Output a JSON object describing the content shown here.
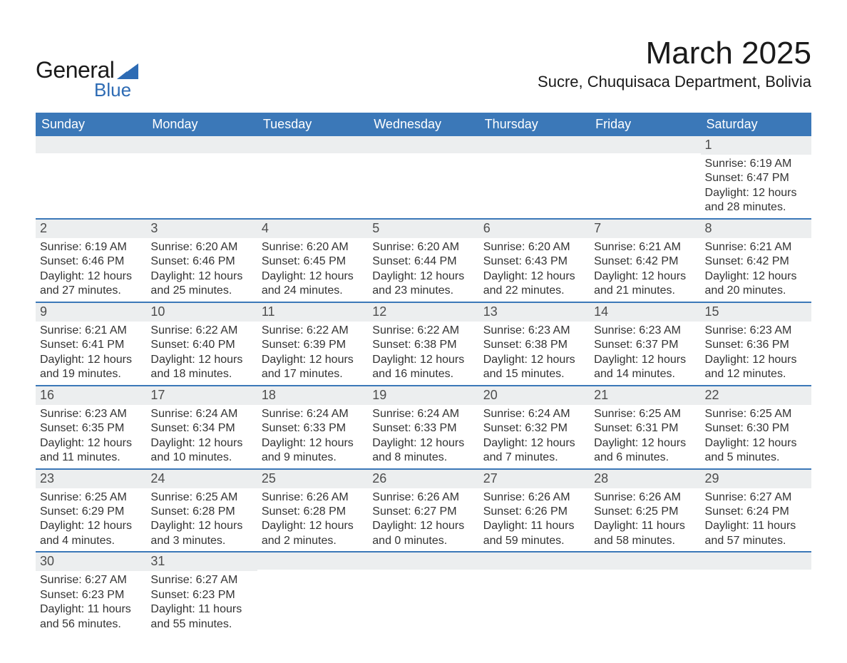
{
  "brand": {
    "line1": "General",
    "line2": "Blue"
  },
  "title": "March 2025",
  "location": "Sucre, Chuquisaca Department, Bolivia",
  "columns": [
    "Sunday",
    "Monday",
    "Tuesday",
    "Wednesday",
    "Thursday",
    "Friday",
    "Saturday"
  ],
  "colors": {
    "header_bg": "#3b78b8",
    "header_text": "#ffffff",
    "daynum_bg": "#eceeef",
    "row_border": "#3b78b8",
    "text": "#333333",
    "brand_blue": "#2d6bb4"
  },
  "first_weekday_index": 6,
  "days": [
    {
      "n": 1,
      "sunrise": "6:19 AM",
      "sunset": "6:47 PM",
      "dl_h": 12,
      "dl_m": 28
    },
    {
      "n": 2,
      "sunrise": "6:19 AM",
      "sunset": "6:46 PM",
      "dl_h": 12,
      "dl_m": 27
    },
    {
      "n": 3,
      "sunrise": "6:20 AM",
      "sunset": "6:46 PM",
      "dl_h": 12,
      "dl_m": 25
    },
    {
      "n": 4,
      "sunrise": "6:20 AM",
      "sunset": "6:45 PM",
      "dl_h": 12,
      "dl_m": 24
    },
    {
      "n": 5,
      "sunrise": "6:20 AM",
      "sunset": "6:44 PM",
      "dl_h": 12,
      "dl_m": 23
    },
    {
      "n": 6,
      "sunrise": "6:20 AM",
      "sunset": "6:43 PM",
      "dl_h": 12,
      "dl_m": 22
    },
    {
      "n": 7,
      "sunrise": "6:21 AM",
      "sunset": "6:42 PM",
      "dl_h": 12,
      "dl_m": 21
    },
    {
      "n": 8,
      "sunrise": "6:21 AM",
      "sunset": "6:42 PM",
      "dl_h": 12,
      "dl_m": 20
    },
    {
      "n": 9,
      "sunrise": "6:21 AM",
      "sunset": "6:41 PM",
      "dl_h": 12,
      "dl_m": 19
    },
    {
      "n": 10,
      "sunrise": "6:22 AM",
      "sunset": "6:40 PM",
      "dl_h": 12,
      "dl_m": 18
    },
    {
      "n": 11,
      "sunrise": "6:22 AM",
      "sunset": "6:39 PM",
      "dl_h": 12,
      "dl_m": 17
    },
    {
      "n": 12,
      "sunrise": "6:22 AM",
      "sunset": "6:38 PM",
      "dl_h": 12,
      "dl_m": 16
    },
    {
      "n": 13,
      "sunrise": "6:23 AM",
      "sunset": "6:38 PM",
      "dl_h": 12,
      "dl_m": 15
    },
    {
      "n": 14,
      "sunrise": "6:23 AM",
      "sunset": "6:37 PM",
      "dl_h": 12,
      "dl_m": 14
    },
    {
      "n": 15,
      "sunrise": "6:23 AM",
      "sunset": "6:36 PM",
      "dl_h": 12,
      "dl_m": 12
    },
    {
      "n": 16,
      "sunrise": "6:23 AM",
      "sunset": "6:35 PM",
      "dl_h": 12,
      "dl_m": 11
    },
    {
      "n": 17,
      "sunrise": "6:24 AM",
      "sunset": "6:34 PM",
      "dl_h": 12,
      "dl_m": 10
    },
    {
      "n": 18,
      "sunrise": "6:24 AM",
      "sunset": "6:33 PM",
      "dl_h": 12,
      "dl_m": 9
    },
    {
      "n": 19,
      "sunrise": "6:24 AM",
      "sunset": "6:33 PM",
      "dl_h": 12,
      "dl_m": 8
    },
    {
      "n": 20,
      "sunrise": "6:24 AM",
      "sunset": "6:32 PM",
      "dl_h": 12,
      "dl_m": 7
    },
    {
      "n": 21,
      "sunrise": "6:25 AM",
      "sunset": "6:31 PM",
      "dl_h": 12,
      "dl_m": 6
    },
    {
      "n": 22,
      "sunrise": "6:25 AM",
      "sunset": "6:30 PM",
      "dl_h": 12,
      "dl_m": 5
    },
    {
      "n": 23,
      "sunrise": "6:25 AM",
      "sunset": "6:29 PM",
      "dl_h": 12,
      "dl_m": 4
    },
    {
      "n": 24,
      "sunrise": "6:25 AM",
      "sunset": "6:28 PM",
      "dl_h": 12,
      "dl_m": 3
    },
    {
      "n": 25,
      "sunrise": "6:26 AM",
      "sunset": "6:28 PM",
      "dl_h": 12,
      "dl_m": 2
    },
    {
      "n": 26,
      "sunrise": "6:26 AM",
      "sunset": "6:27 PM",
      "dl_h": 12,
      "dl_m": 0
    },
    {
      "n": 27,
      "sunrise": "6:26 AM",
      "sunset": "6:26 PM",
      "dl_h": 11,
      "dl_m": 59
    },
    {
      "n": 28,
      "sunrise": "6:26 AM",
      "sunset": "6:25 PM",
      "dl_h": 11,
      "dl_m": 58
    },
    {
      "n": 29,
      "sunrise": "6:27 AM",
      "sunset": "6:24 PM",
      "dl_h": 11,
      "dl_m": 57
    },
    {
      "n": 30,
      "sunrise": "6:27 AM",
      "sunset": "6:23 PM",
      "dl_h": 11,
      "dl_m": 56
    },
    {
      "n": 31,
      "sunrise": "6:27 AM",
      "sunset": "6:23 PM",
      "dl_h": 11,
      "dl_m": 55
    }
  ],
  "labels": {
    "sunrise": "Sunrise:",
    "sunset": "Sunset:",
    "daylight": "Daylight:",
    "hours": "hours",
    "and": "and",
    "minutes": "minutes."
  }
}
